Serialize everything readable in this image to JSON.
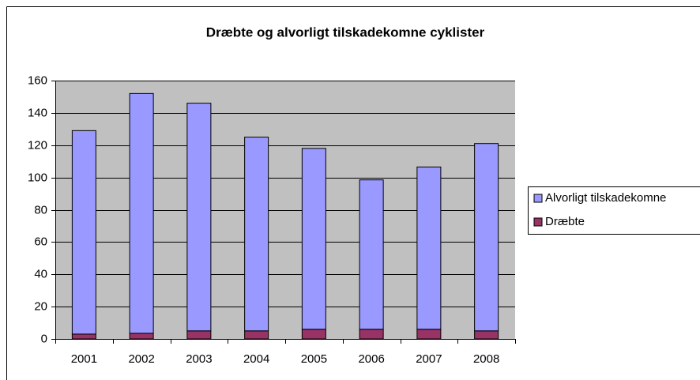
{
  "chart_data": {
    "type": "stacked_bar",
    "title": "Dræbte og alvorligt tilskadekomne cyklister",
    "categories": [
      "2001",
      "2002",
      "2003",
      "2004",
      "2005",
      "2006",
      "2007",
      "2008"
    ],
    "series": [
      {
        "name": "Alvorligt tilskadekomne",
        "color": "#9999ff",
        "values": [
          126,
          148.5,
          141,
          120,
          112,
          92.5,
          100.5,
          116
        ]
      },
      {
        "name": "Dræbte",
        "color": "#993366",
        "values": [
          3,
          3.5,
          5,
          5,
          6,
          6,
          6,
          5
        ]
      }
    ],
    "ylim": [
      0,
      160
    ],
    "yticks": [
      0,
      20,
      40,
      60,
      80,
      100,
      120,
      140,
      160
    ],
    "grid": true,
    "legend": "right"
  }
}
